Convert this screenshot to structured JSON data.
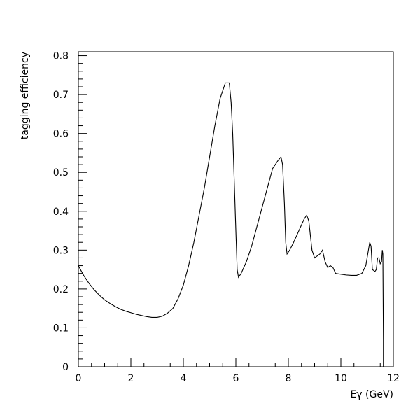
{
  "chart_data": {
    "type": "line",
    "title": "",
    "xlabel": "Eγ (GeV)",
    "ylabel": "tagging efficiency",
    "xlim": [
      0,
      12
    ],
    "ylim": [
      0,
      0.81
    ],
    "grid": false,
    "legend": "none",
    "x_ticks": [
      0,
      2,
      4,
      6,
      8,
      10,
      12
    ],
    "y_ticks": [
      0,
      0.1,
      0.2,
      0.3,
      0.4,
      0.5,
      0.6,
      0.7,
      0.8
    ],
    "x_tick_labels": [
      "0",
      "2",
      "4",
      "6",
      "8",
      "10",
      "12"
    ],
    "y_tick_labels": [
      "0",
      "0.1",
      "0.2",
      "0.3",
      "0.4",
      "0.5",
      "0.6",
      "0.7",
      "0.8"
    ],
    "series": [
      {
        "color": "#000000",
        "x": [
          0.0,
          0.2,
          0.4,
          0.6,
          0.8,
          1.0,
          1.2,
          1.4,
          1.6,
          1.8,
          2.0,
          2.2,
          2.4,
          2.6,
          2.8,
          3.0,
          3.2,
          3.4,
          3.6,
          3.8,
          4.0,
          4.2,
          4.4,
          4.6,
          4.8,
          5.0,
          5.2,
          5.4,
          5.6,
          5.75,
          5.82,
          5.88,
          6.0,
          6.05,
          6.1,
          6.2,
          6.4,
          6.6,
          6.8,
          7.0,
          7.2,
          7.4,
          7.6,
          7.72,
          7.78,
          7.85,
          7.9,
          7.95,
          8.05,
          8.2,
          8.4,
          8.6,
          8.7,
          8.78,
          8.9,
          9.0,
          9.2,
          9.3,
          9.4,
          9.5,
          9.6,
          9.7,
          9.8,
          10.0,
          10.2,
          10.4,
          10.6,
          10.8,
          10.95,
          11.05,
          11.1,
          11.15,
          11.2,
          11.3,
          11.35,
          11.4,
          11.45,
          11.5,
          11.55,
          11.58,
          11.6,
          11.62
        ],
        "y": [
          0.26,
          0.235,
          0.215,
          0.198,
          0.184,
          0.172,
          0.163,
          0.155,
          0.148,
          0.143,
          0.139,
          0.135,
          0.132,
          0.129,
          0.127,
          0.127,
          0.13,
          0.138,
          0.15,
          0.175,
          0.21,
          0.26,
          0.32,
          0.39,
          0.46,
          0.54,
          0.62,
          0.69,
          0.73,
          0.73,
          0.68,
          0.6,
          0.35,
          0.25,
          0.23,
          0.24,
          0.27,
          0.31,
          0.36,
          0.41,
          0.46,
          0.51,
          0.53,
          0.54,
          0.52,
          0.42,
          0.32,
          0.29,
          0.3,
          0.32,
          0.35,
          0.38,
          0.39,
          0.375,
          0.3,
          0.28,
          0.29,
          0.3,
          0.27,
          0.255,
          0.26,
          0.255,
          0.24,
          0.238,
          0.236,
          0.235,
          0.235,
          0.24,
          0.26,
          0.3,
          0.32,
          0.31,
          0.25,
          0.245,
          0.25,
          0.28,
          0.28,
          0.265,
          0.27,
          0.3,
          0.29,
          0.07
        ]
      }
    ]
  }
}
